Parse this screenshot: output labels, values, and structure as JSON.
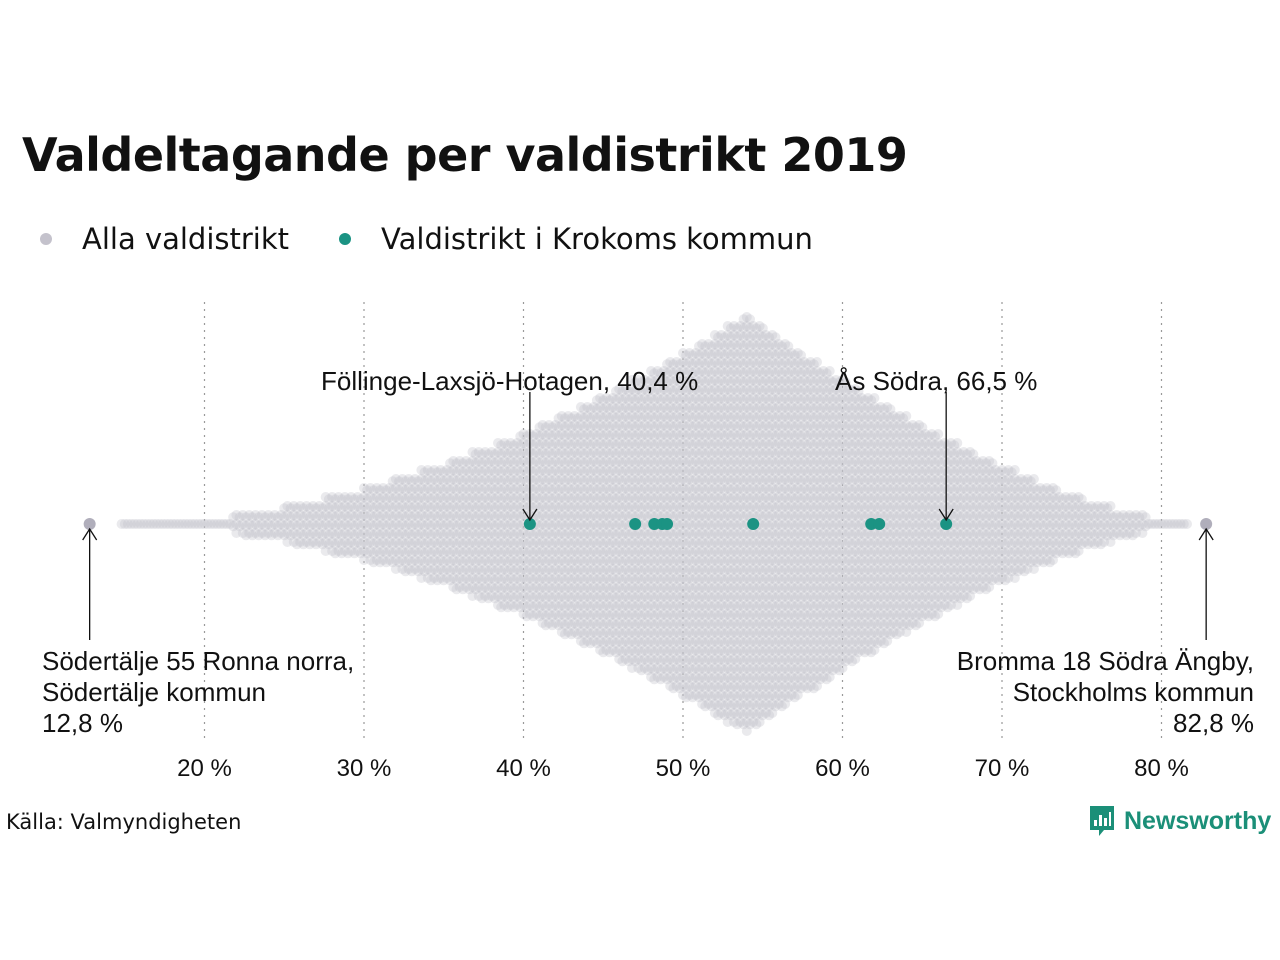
{
  "chart_data": {
    "type": "scatter",
    "subtype": "beeswarm",
    "title": "Valdeltagande per valdistrikt 2019",
    "legend": [
      {
        "label": "Alla valdistrikt",
        "color": "#c4c2cc"
      },
      {
        "label": "Valdistrikt i Krokoms kommun",
        "color": "#1b9383"
      }
    ],
    "xlim": [
      10,
      86
    ],
    "xticks": [
      20,
      30,
      40,
      50,
      60,
      70,
      80
    ],
    "xtick_labels": [
      "20 %",
      "30 %",
      "40 %",
      "50 %",
      "60 %",
      "70 %",
      "80 %"
    ],
    "grid": "vertical-dotted",
    "highlight_values": [
      40.4,
      47.0,
      48.2,
      48.7,
      49.0,
      54.4,
      61.8,
      62.3,
      66.5
    ],
    "extreme_values": [
      12.8,
      82.8
    ],
    "annotations": [
      {
        "value": 40.4,
        "lines": [
          "Föllinge-Laxsjö-Hotagen, 40,4 %"
        ]
      },
      {
        "value": 66.5,
        "lines": [
          "Ås Södra, 66,5 %"
        ]
      },
      {
        "value": 12.8,
        "lines": [
          "Södertälje 55 Ronna norra,",
          "Södertälje kommun",
          "12,8 %"
        ]
      },
      {
        "value": 82.8,
        "lines": [
          "Bromma 18 Södra Ängby,",
          "Stockholms kommun",
          "82,8 %"
        ]
      }
    ]
  },
  "source": "Källa: Valmyndigheten",
  "brand": "Newsworthy",
  "colors": {
    "all": "#c4c2cc",
    "highlight": "#1b9383",
    "brand": "#1b8f78"
  },
  "icons": {
    "logo": "bar-chart-speech-bubble-icon"
  }
}
